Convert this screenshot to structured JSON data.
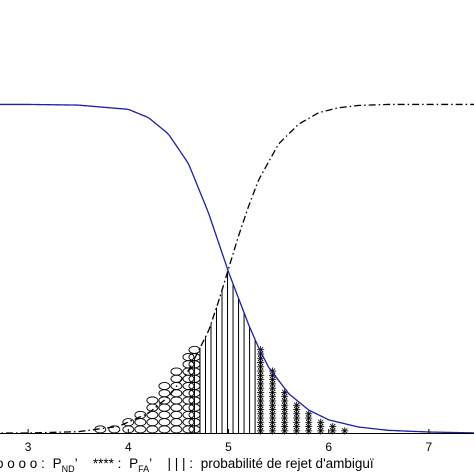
{
  "chart_data": {
    "type": "line",
    "title": "",
    "xlabel": "",
    "ylabel": "",
    "xlim": [
      2.2,
      7.5
    ],
    "ylim": [
      0,
      1.05
    ],
    "x_ticks": [
      {
        "value": 3,
        "label": "3"
      },
      {
        "value": 4,
        "label": "4"
      },
      {
        "value": 5,
        "label": "5"
      },
      {
        "value": 6,
        "label": "6"
      },
      {
        "value": 7,
        "label": "7"
      }
    ],
    "grid": false,
    "series": [
      {
        "style": "solid",
        "color": "#1f1fa8",
        "x": [
          2.2,
          3.0,
          3.5,
          4.0,
          4.2,
          4.4,
          4.6,
          4.8,
          4.9,
          5.0,
          5.1,
          5.2,
          5.3,
          5.4,
          5.6,
          5.8,
          6.0,
          6.3,
          6.6,
          7.0,
          7.5
        ],
        "y": [
          1.0,
          1.0,
          0.998,
          0.985,
          0.96,
          0.91,
          0.82,
          0.67,
          0.58,
          0.49,
          0.41,
          0.33,
          0.26,
          0.2,
          0.12,
          0.07,
          0.04,
          0.018,
          0.008,
          0.003,
          0.0
        ]
      },
      {
        "style": "dash-dot",
        "color": "#000000",
        "x": [
          2.2,
          3.0,
          3.5,
          3.9,
          4.2,
          4.4,
          4.6,
          4.8,
          4.9,
          5.0,
          5.1,
          5.2,
          5.3,
          5.5,
          5.7,
          5.9,
          6.1,
          6.3,
          6.6,
          7.0,
          7.5
        ],
        "y": [
          0.0,
          0.0,
          0.004,
          0.02,
          0.06,
          0.11,
          0.19,
          0.31,
          0.4,
          0.5,
          0.6,
          0.69,
          0.77,
          0.88,
          0.94,
          0.975,
          0.99,
          0.997,
          1.0,
          1.0,
          1.0
        ]
      }
    ],
    "marked_regions": [
      {
        "meaning": "P_ND",
        "marker": "circle",
        "x": [
          3.72,
          3.86,
          4.0,
          4.12,
          4.24,
          4.36,
          4.48,
          4.6,
          4.66
        ],
        "y": [
          0.015,
          0.03,
          0.05,
          0.075,
          0.11,
          0.15,
          0.2,
          0.25,
          0.26
        ]
      },
      {
        "meaning": "P_FA",
        "marker": "star",
        "x": [
          5.32,
          5.44,
          5.56,
          5.68,
          5.8,
          5.92,
          6.04,
          6.16
        ],
        "y": [
          0.26,
          0.19,
          0.13,
          0.09,
          0.06,
          0.04,
          0.025,
          0.012
        ]
      },
      {
        "meaning": "probabilite de rejet d'ambiguite",
        "marker": "vertical-lines",
        "x_range": [
          4.66,
          5.32
        ]
      }
    ],
    "legend": {
      "position": "bottom",
      "items": [
        {
          "symbol": "o o o o :",
          "main": "P",
          "sub": "ND",
          "suffix": "’"
        },
        {
          "symbol": "**** :",
          "main": "P",
          "sub": "FA",
          "suffix": "’"
        },
        {
          "symbol": "| | | :",
          "text": "probabilité de rejet d'ambiguï"
        }
      ]
    }
  }
}
